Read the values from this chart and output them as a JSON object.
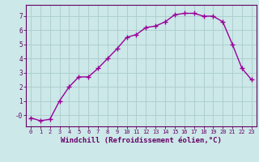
{
  "x": [
    0,
    1,
    2,
    3,
    4,
    5,
    6,
    7,
    8,
    9,
    10,
    11,
    12,
    13,
    14,
    15,
    16,
    17,
    18,
    19,
    20,
    21,
    22,
    23
  ],
  "y": [
    -0.2,
    -0.4,
    -0.3,
    1.0,
    2.0,
    2.7,
    2.7,
    3.3,
    4.0,
    4.7,
    5.5,
    5.7,
    6.2,
    6.3,
    6.6,
    7.1,
    7.2,
    7.2,
    7.0,
    7.0,
    6.6,
    5.0,
    3.3,
    2.5
  ],
  "line_color": "#990099",
  "marker": "+",
  "markersize": 4,
  "linewidth": 1.0,
  "markeredgewidth": 1.0,
  "xlabel": "Windchill (Refroidissement éolien,°C)",
  "xlabel_fontsize": 6.5,
  "bg_color": "#cce8e8",
  "grid_color": "#aacccc",
  "spine_color": "#660066",
  "tick_color": "#660066",
  "label_color": "#660066",
  "ylim": [
    -0.8,
    7.8
  ],
  "xlim": [
    -0.5,
    23.5
  ],
  "yticks": [
    0,
    1,
    2,
    3,
    4,
    5,
    6,
    7
  ],
  "ytick_labels": [
    "-0",
    "1",
    "2",
    "3",
    "4",
    "5",
    "6",
    "7"
  ],
  "xticks": [
    0,
    1,
    2,
    3,
    4,
    5,
    6,
    7,
    8,
    9,
    10,
    11,
    12,
    13,
    14,
    15,
    16,
    17,
    18,
    19,
    20,
    21,
    22,
    23
  ]
}
